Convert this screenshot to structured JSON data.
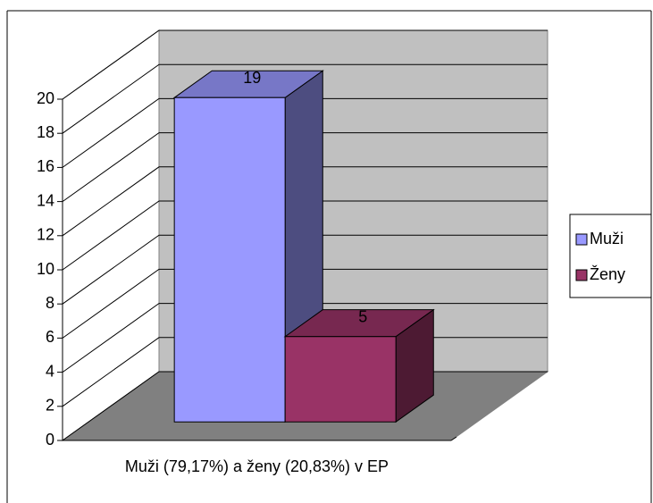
{
  "chart_data": {
    "type": "bar3d",
    "categories": [
      "Muži (79,17%) a ženy (20,83%) v EP"
    ],
    "series": [
      {
        "name": "Muži",
        "color": "#9999ff",
        "values": [
          19
        ]
      },
      {
        "name": "Ženy",
        "color": "#993366",
        "values": [
          5
        ]
      }
    ],
    "ylim": [
      0,
      20
    ],
    "yticks": [
      0,
      2,
      4,
      6,
      8,
      10,
      12,
      14,
      16,
      18,
      20
    ],
    "grid": true,
    "legend": "right"
  }
}
